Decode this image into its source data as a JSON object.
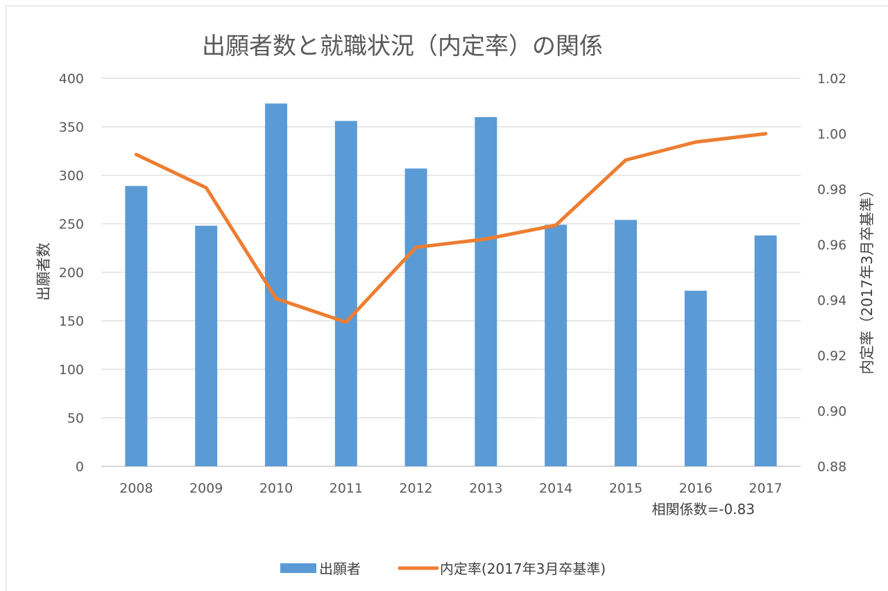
{
  "chart_data": {
    "type": "bar+line",
    "title": "出願者数と就職状況（内定率）の関係",
    "categories": [
      "2008",
      "2009",
      "2010",
      "2011",
      "2012",
      "2013",
      "2014",
      "2015",
      "2016",
      "2017"
    ],
    "series": [
      {
        "name": "出願者",
        "type": "bar",
        "axis": "left",
        "color": "#5b9bd5",
        "values": [
          289,
          248,
          374,
          356,
          307,
          360,
          249,
          254,
          181,
          238
        ]
      },
      {
        "name": "内定率(2017年3月卒基準)",
        "type": "line",
        "axis": "right",
        "color": "#ed7d31",
        "values": [
          0.9925,
          0.9805,
          0.9405,
          0.932,
          0.959,
          0.962,
          0.967,
          0.9905,
          0.997,
          1.0
        ]
      }
    ],
    "y_left": {
      "label": "出願者数",
      "min": 0,
      "max": 400,
      "step": 50,
      "ticks": [
        "0",
        "50",
        "100",
        "150",
        "200",
        "250",
        "300",
        "350",
        "400"
      ]
    },
    "y_right": {
      "label": "内定率（2017年3月卒基準）",
      "min": 0.88,
      "max": 1.02,
      "step": 0.02,
      "ticks": [
        "0.88",
        "0.90",
        "0.92",
        "0.94",
        "0.96",
        "0.98",
        "1.00",
        "1.02"
      ]
    },
    "annotation": "相関係数=-0.83",
    "grid": true,
    "legend_position": "bottom"
  }
}
